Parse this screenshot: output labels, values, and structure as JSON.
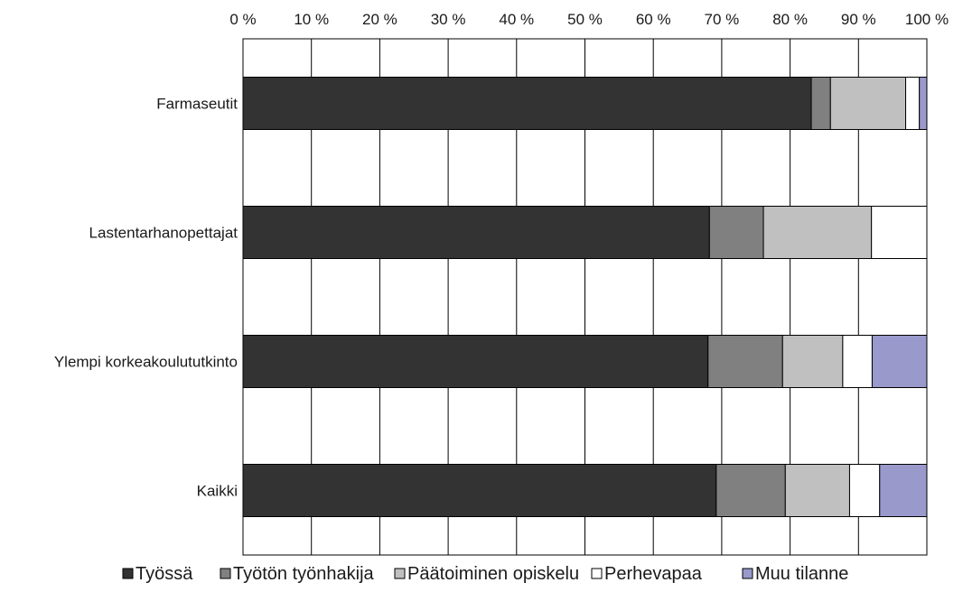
{
  "chart_data": {
    "type": "bar",
    "orientation": "horizontal",
    "stacked": "percent",
    "categories": [
      "Farmaseutit",
      "Lastentarhanopettajat",
      "Ylempi korkeakoulututkinto",
      "Kaikki"
    ],
    "series": [
      {
        "name": "Työssä",
        "color": "#333333",
        "values": [
          83.1,
          68.2,
          68.0,
          69.2
        ]
      },
      {
        "name": "Työtön työnhakija",
        "color": "#808080",
        "values": [
          2.8,
          7.9,
          10.9,
          10.1
        ]
      },
      {
        "name": "Päätoiminen opiskelu",
        "color": "#c0c0c0",
        "values": [
          11.0,
          15.8,
          8.8,
          9.4
        ]
      },
      {
        "name": "Perhevapaa",
        "color": "#ffffff",
        "values": [
          2.0,
          8.1,
          4.3,
          4.4
        ]
      },
      {
        "name": "Muu tilanne",
        "color": "#9999cc",
        "values": [
          1.1,
          0.0,
          8.0,
          6.9
        ]
      }
    ],
    "x_ticks": [
      "0 %",
      "10 %",
      "20 %",
      "30 %",
      "40 %",
      "50 %",
      "60 %",
      "70 %",
      "80 %",
      "90 %",
      "100 %"
    ],
    "xlim": [
      0,
      100
    ],
    "axis_position": "top",
    "grid": true,
    "legend_position": "bottom"
  }
}
